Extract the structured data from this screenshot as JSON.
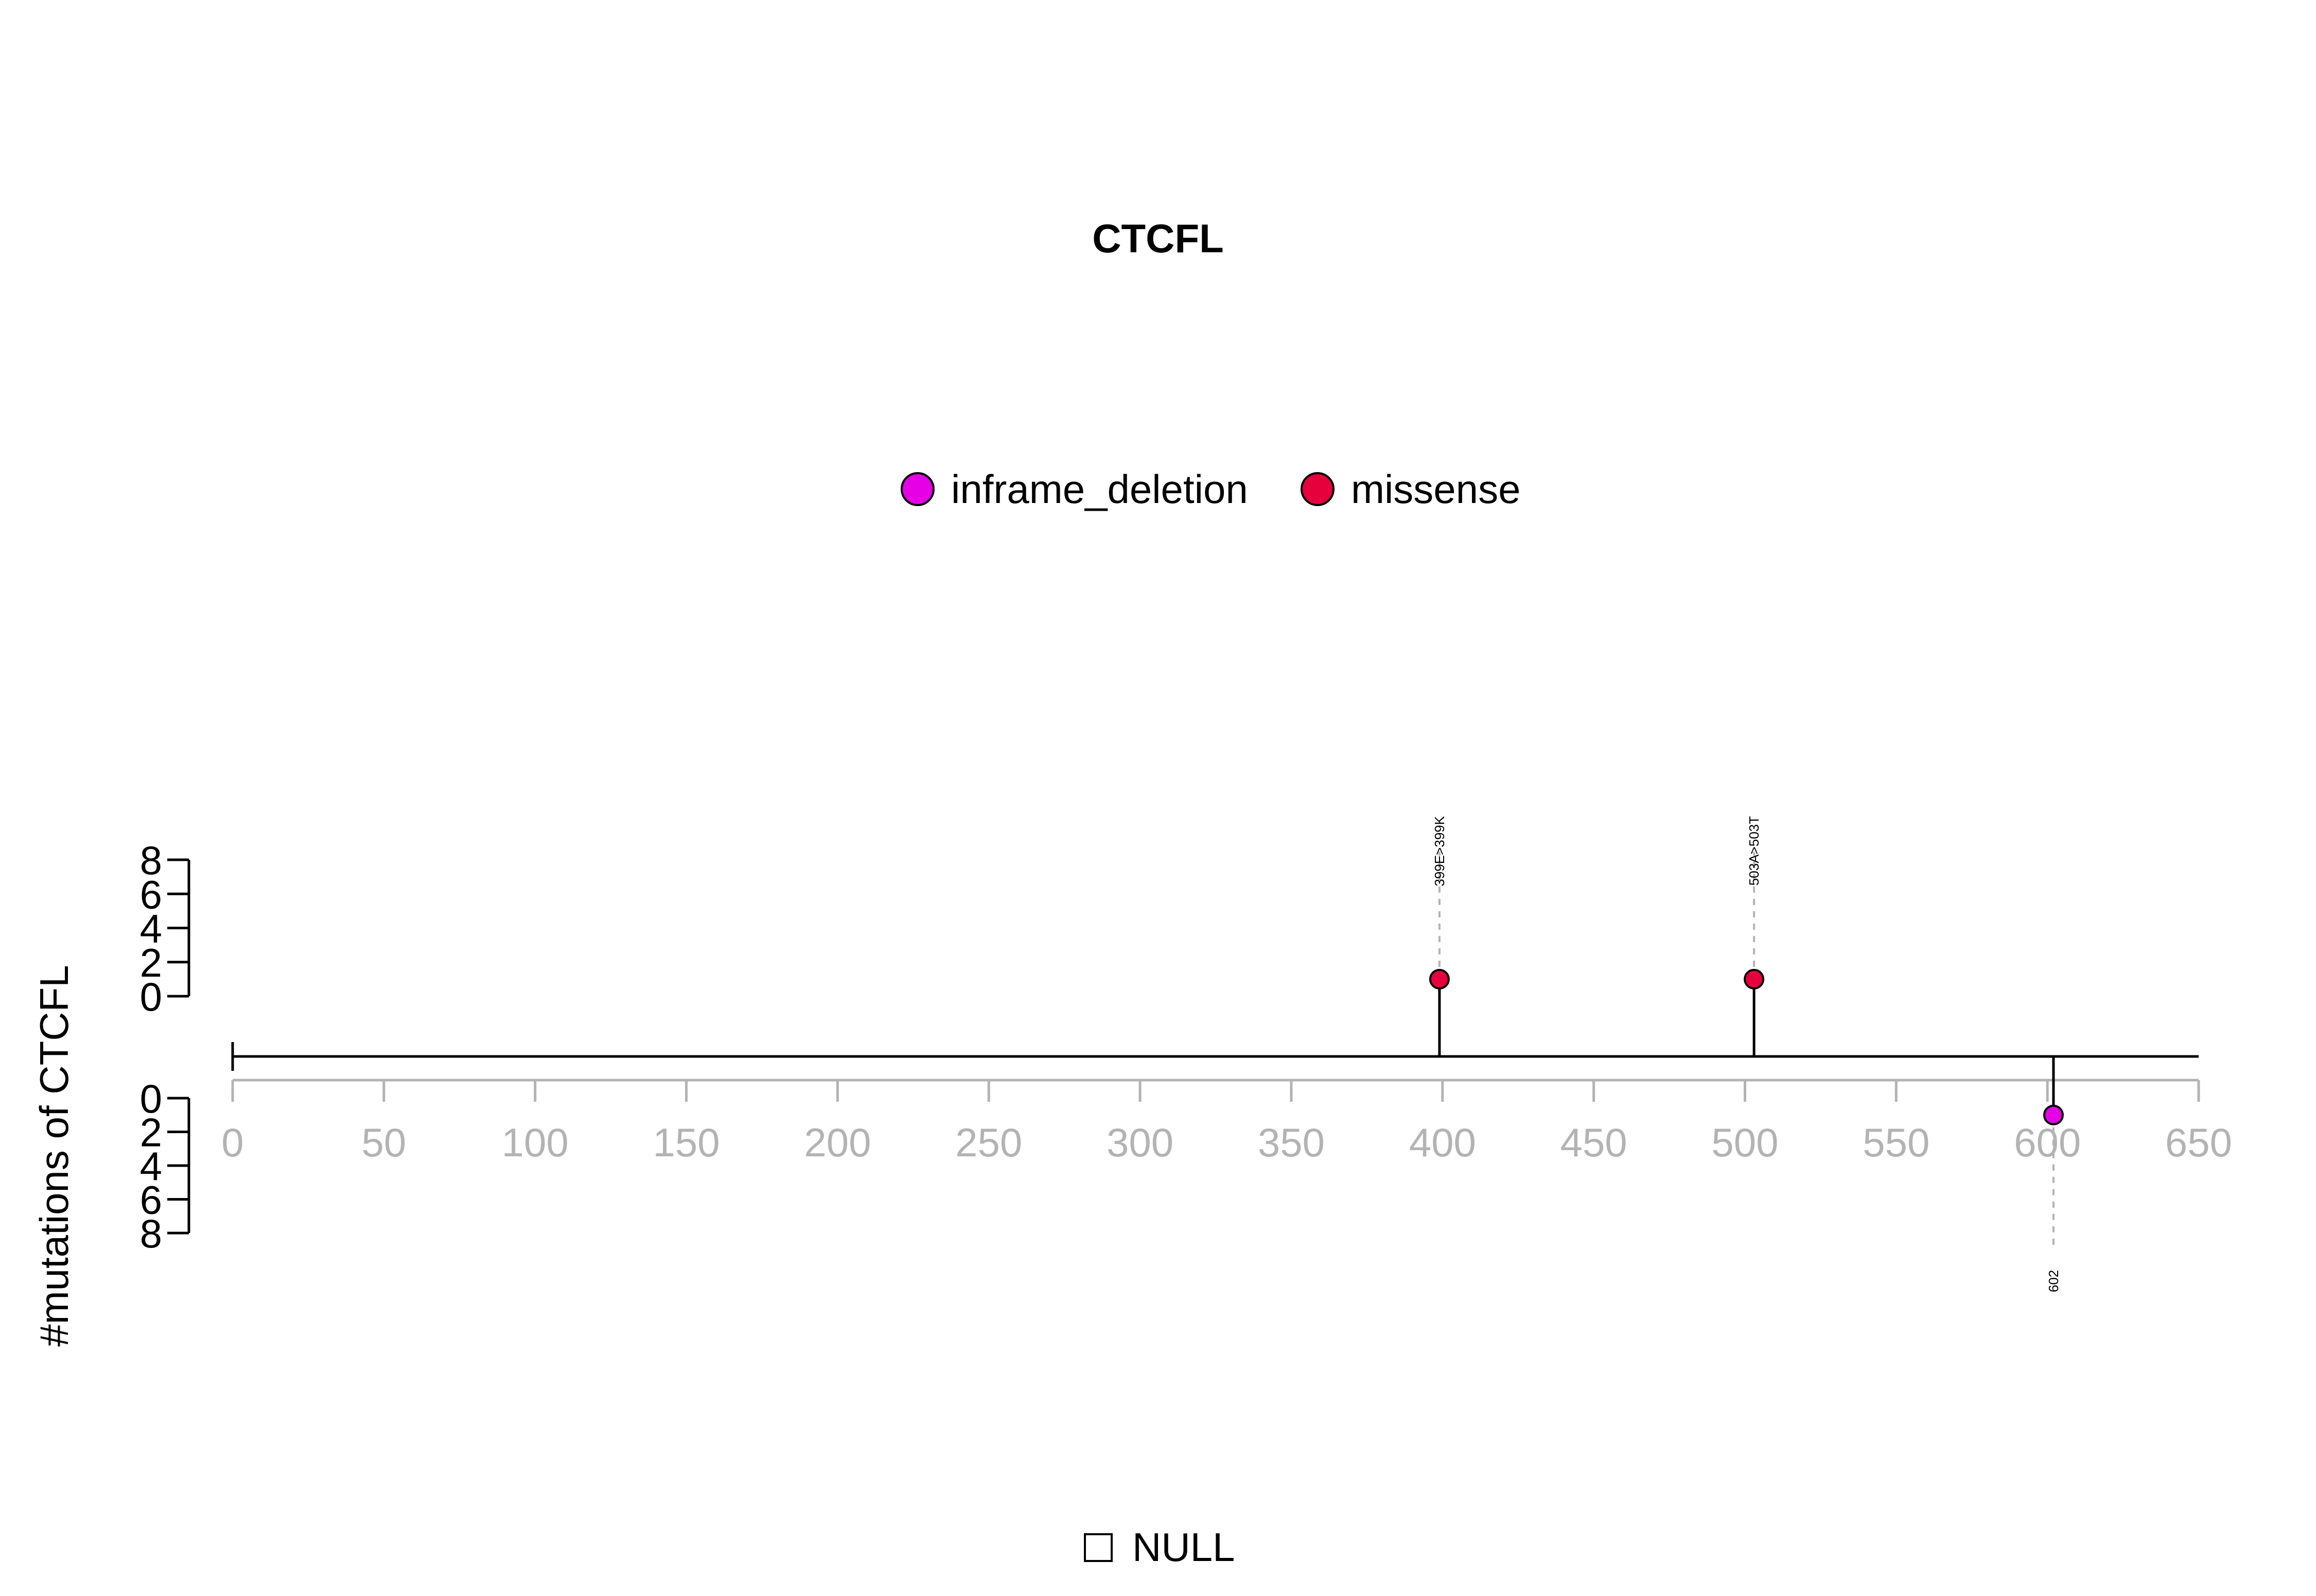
{
  "chart_data": {
    "type": "lollipop",
    "title": "CTCFL",
    "ylabel": "#mutations of CTCFL",
    "x_ticks": [
      0,
      50,
      100,
      150,
      200,
      250,
      300,
      350,
      400,
      450,
      500,
      550,
      600,
      650
    ],
    "xlim": [
      0,
      650
    ],
    "protein_length": 650,
    "y_ticks": [
      0,
      2,
      4,
      6,
      8
    ],
    "ylim": [
      0,
      8
    ],
    "legend": [
      {
        "name": "inframe_deletion",
        "color": "#e600e6"
      },
      {
        "name": "missense",
        "color": "#e6003c"
      }
    ],
    "mutations": [
      {
        "position": 399,
        "count": 1,
        "type": "missense",
        "label": "399E>399K",
        "side": "top"
      },
      {
        "position": 503,
        "count": 1,
        "type": "missense",
        "label": "503A>503T",
        "side": "top"
      },
      {
        "position": 602,
        "count": 1,
        "type": "inframe_deletion",
        "label": "602",
        "side": "bottom"
      }
    ],
    "domain_legend": [
      {
        "name": "NULL"
      }
    ]
  }
}
